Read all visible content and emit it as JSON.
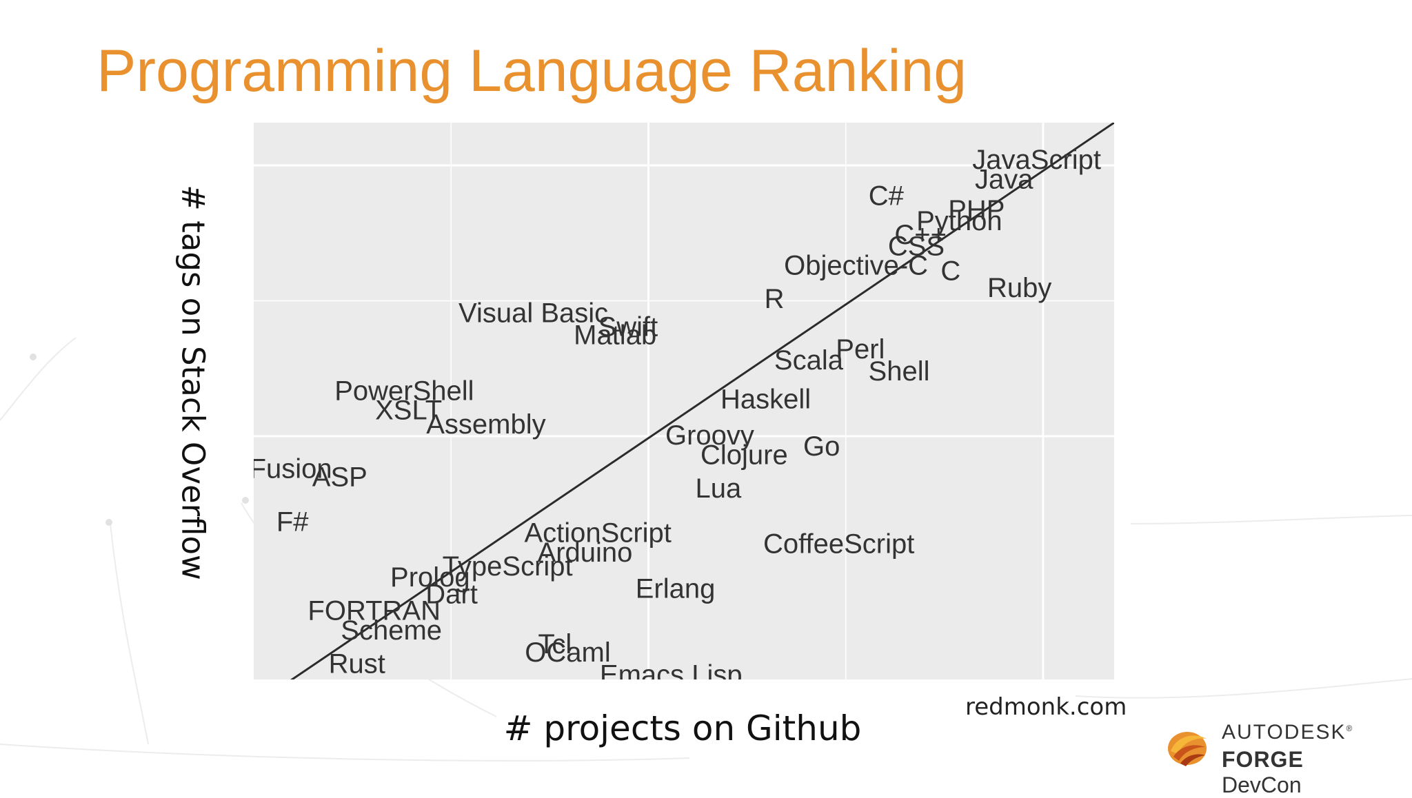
{
  "slide": {
    "title": "Programming Language Ranking",
    "source": "redmonk.com",
    "brand_line1": "AUTODESK",
    "brand_reg": "®",
    "brand_line2_bold": "FORGE",
    "brand_line2_rest": "DevCon"
  },
  "colors": {
    "title": "#e8912e",
    "panel": "#ebebeb",
    "grid": "#ffffff",
    "label": "#333333",
    "fit_line": "#2b2b2b"
  },
  "chart_data": {
    "type": "scatter",
    "title": "",
    "xlabel": "# projects on Github",
    "ylabel": "# tags on Stack Overflow",
    "xlim": [
      0,
      10
    ],
    "ylim": [
      0,
      10
    ],
    "grid": true,
    "tick_labels_visible": false,
    "fit_line": {
      "from": [
        0.35,
        -0.1
      ],
      "to": [
        10,
        10
      ]
    },
    "points": [
      {
        "label": "JavaScript",
        "x": 9.1,
        "y": 9.3
      },
      {
        "label": "Java",
        "x": 8.72,
        "y": 8.95
      },
      {
        "label": "C#",
        "x": 7.35,
        "y": 8.65
      },
      {
        "label": "PHP",
        "x": 8.4,
        "y": 8.4
      },
      {
        "label": "Python",
        "x": 8.2,
        "y": 8.2
      },
      {
        "label": "C++",
        "x": 7.75,
        "y": 7.95
      },
      {
        "label": "CSS",
        "x": 7.7,
        "y": 7.75
      },
      {
        "label": "Objective-C",
        "x": 7.0,
        "y": 7.4
      },
      {
        "label": "C",
        "x": 8.1,
        "y": 7.3
      },
      {
        "label": "Ruby",
        "x": 8.9,
        "y": 7.0
      },
      {
        "label": "R",
        "x": 6.05,
        "y": 6.8
      },
      {
        "label": "Visual Basic",
        "x": 3.25,
        "y": 6.55
      },
      {
        "label": "Swift",
        "x": 4.35,
        "y": 6.3
      },
      {
        "label": "Matlab",
        "x": 4.2,
        "y": 6.15
      },
      {
        "label": "Scala",
        "x": 6.45,
        "y": 5.7
      },
      {
        "label": "Perl",
        "x": 7.05,
        "y": 5.9
      },
      {
        "label": "Shell",
        "x": 7.5,
        "y": 5.5
      },
      {
        "label": "Haskell",
        "x": 5.95,
        "y": 5.0
      },
      {
        "label": "PowerShell",
        "x": 1.75,
        "y": 5.15
      },
      {
        "label": "XSLT",
        "x": 1.8,
        "y": 4.8
      },
      {
        "label": "Assembly",
        "x": 2.7,
        "y": 4.55
      },
      {
        "label": "Groovy",
        "x": 5.3,
        "y": 4.35
      },
      {
        "label": "Clojure",
        "x": 5.7,
        "y": 4.0
      },
      {
        "label": "Go",
        "x": 6.6,
        "y": 4.15
      },
      {
        "label": "ColdFusion",
        "x": 0.1,
        "y": 3.75
      },
      {
        "label": "ASP",
        "x": 1.0,
        "y": 3.6
      },
      {
        "label": "Lua",
        "x": 5.4,
        "y": 3.4
      },
      {
        "label": "F#",
        "x": 0.45,
        "y": 2.8
      },
      {
        "label": "ActionScript",
        "x": 4.0,
        "y": 2.6
      },
      {
        "label": "CoffeeScript",
        "x": 6.8,
        "y": 2.4
      },
      {
        "label": "Arduino",
        "x": 3.85,
        "y": 2.25
      },
      {
        "label": "TypeScript",
        "x": 2.95,
        "y": 2.0
      },
      {
        "label": "Prolog",
        "x": 2.05,
        "y": 1.8
      },
      {
        "label": "Dart",
        "x": 2.3,
        "y": 1.5
      },
      {
        "label": "Erlang",
        "x": 4.9,
        "y": 1.6
      },
      {
        "label": "FORTRAN",
        "x": 1.4,
        "y": 1.2
      },
      {
        "label": "Scheme",
        "x": 1.6,
        "y": 0.85
      },
      {
        "label": "Tcl",
        "x": 3.5,
        "y": 0.6
      },
      {
        "label": "OCaml",
        "x": 3.65,
        "y": 0.45
      },
      {
        "label": "Rust",
        "x": 1.2,
        "y": 0.25
      },
      {
        "label": "Emacs Lisp",
        "x": 4.85,
        "y": 0.05
      }
    ]
  }
}
